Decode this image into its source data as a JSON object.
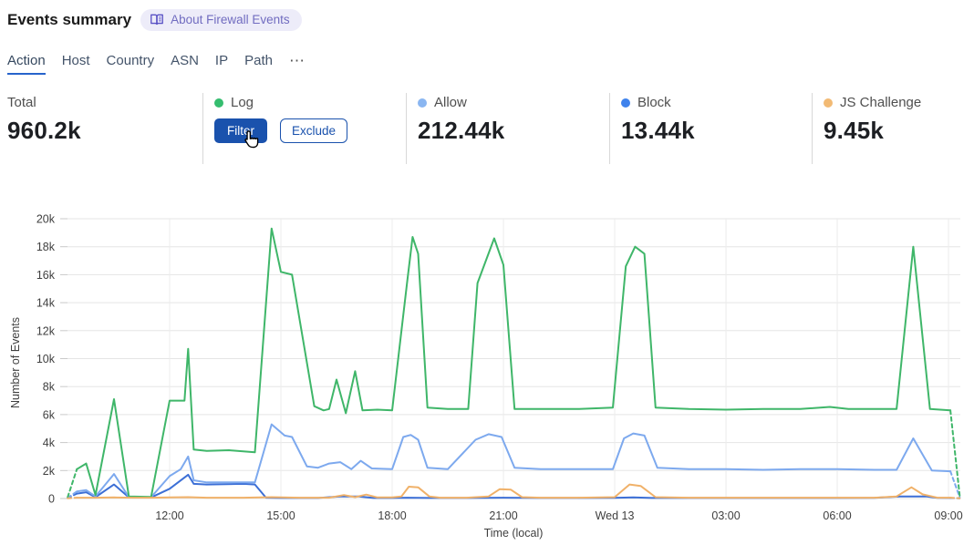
{
  "header": {
    "title": "Events summary",
    "badge": {
      "icon": "book-icon",
      "label": "About Firewall Events"
    }
  },
  "tabs": {
    "items": [
      {
        "label": "Action",
        "active": true
      },
      {
        "label": "Host",
        "active": false
      },
      {
        "label": "Country",
        "active": false
      },
      {
        "label": "ASN",
        "active": false
      },
      {
        "label": "IP",
        "active": false
      },
      {
        "label": "Path",
        "active": false
      }
    ],
    "more": "⋯"
  },
  "stats": {
    "cards": [
      {
        "label": "Total",
        "value": "960.2k"
      },
      {
        "label": "Log",
        "dot_color": "#35bd6f",
        "buttons": [
          "Filter",
          "Exclude"
        ]
      },
      {
        "label": "Allow",
        "dot_color": "#8ab6f1",
        "value": "212.44k"
      },
      {
        "label": "Block",
        "dot_color": "#3e82ec",
        "value": "13.44k"
      },
      {
        "label": "JS Challenge",
        "dot_color": "#f2ba74",
        "value": "9.45k"
      }
    ]
  },
  "chart_data": {
    "type": "line",
    "title": "",
    "xlabel": "Time (local)",
    "ylabel": "Number of Events",
    "ylim": [
      0,
      20000
    ],
    "grid": true,
    "x_unit": "hours since 09:00 (Tue)",
    "x_domain": [
      0.25,
      24.3
    ],
    "y_ticks": [
      "0",
      "2k",
      "4k",
      "6k",
      "8k",
      "10k",
      "12k",
      "14k",
      "16k",
      "18k",
      "20k"
    ],
    "x_ticks": [
      {
        "label": "12:00",
        "hour": 3
      },
      {
        "label": "15:00",
        "hour": 6
      },
      {
        "label": "18:00",
        "hour": 9
      },
      {
        "label": "21:00",
        "hour": 12
      },
      {
        "label": "Wed 13",
        "hour": 15
      },
      {
        "label": "03:00",
        "hour": 18
      },
      {
        "label": "06:00",
        "hour": 21
      },
      {
        "label": "09:00",
        "hour": 24
      }
    ],
    "series": [
      {
        "name": "Block",
        "color": "#3c6fd6",
        "head_dash": [
          [
            0.25,
            30
          ],
          [
            0.5,
            350
          ]
        ],
        "points": [
          [
            0.5,
            350
          ],
          [
            0.75,
            450
          ],
          [
            1,
            100
          ],
          [
            1.5,
            1000
          ],
          [
            1.9,
            80
          ],
          [
            2.5,
            80
          ],
          [
            3,
            700
          ],
          [
            3.5,
            1700
          ],
          [
            3.65,
            1050
          ],
          [
            4,
            1000
          ],
          [
            5,
            1050
          ],
          [
            5.3,
            1000
          ],
          [
            5.6,
            60
          ],
          [
            6,
            40
          ],
          [
            7,
            40
          ],
          [
            7.6,
            150
          ],
          [
            8.1,
            150
          ],
          [
            8.5,
            40
          ],
          [
            9,
            40
          ],
          [
            9.4,
            60
          ],
          [
            10,
            40
          ],
          [
            11,
            40
          ],
          [
            12,
            60
          ],
          [
            13,
            40
          ],
          [
            14,
            40
          ],
          [
            15,
            50
          ],
          [
            15.5,
            80
          ],
          [
            16,
            40
          ],
          [
            17,
            40
          ],
          [
            18,
            40
          ],
          [
            19,
            40
          ],
          [
            20,
            40
          ],
          [
            21,
            40
          ],
          [
            22,
            50
          ],
          [
            22.7,
            150
          ],
          [
            23.4,
            150
          ],
          [
            23.7,
            50
          ],
          [
            24.05,
            40
          ]
        ],
        "tail_dash": [
          [
            24.05,
            40
          ],
          [
            24.3,
            20
          ]
        ]
      },
      {
        "name": "Allow",
        "color": "#7da9ee",
        "head_dash": [
          [
            0.25,
            50
          ],
          [
            0.5,
            500
          ]
        ],
        "points": [
          [
            0.5,
            500
          ],
          [
            0.75,
            600
          ],
          [
            1,
            150
          ],
          [
            1.5,
            1750
          ],
          [
            1.9,
            100
          ],
          [
            2.5,
            100
          ],
          [
            3,
            1600
          ],
          [
            3.3,
            2100
          ],
          [
            3.5,
            3000
          ],
          [
            3.65,
            1300
          ],
          [
            4,
            1150
          ],
          [
            5,
            1150
          ],
          [
            5.3,
            1150
          ],
          [
            5.75,
            5300
          ],
          [
            6.1,
            4500
          ],
          [
            6.3,
            4400
          ],
          [
            6.7,
            2300
          ],
          [
            7,
            2200
          ],
          [
            7.3,
            2500
          ],
          [
            7.6,
            2600
          ],
          [
            7.9,
            2100
          ],
          [
            8.15,
            2700
          ],
          [
            8.45,
            2150
          ],
          [
            9,
            2100
          ],
          [
            9.3,
            4400
          ],
          [
            9.5,
            4550
          ],
          [
            9.7,
            4200
          ],
          [
            9.95,
            2200
          ],
          [
            10.5,
            2100
          ],
          [
            11.25,
            4200
          ],
          [
            11.6,
            4600
          ],
          [
            11.95,
            4400
          ],
          [
            12.3,
            2200
          ],
          [
            13,
            2100
          ],
          [
            14,
            2100
          ],
          [
            14.95,
            2100
          ],
          [
            15.25,
            4300
          ],
          [
            15.5,
            4650
          ],
          [
            15.8,
            4500
          ],
          [
            16.15,
            2200
          ],
          [
            17,
            2100
          ],
          [
            18,
            2100
          ],
          [
            19,
            2050
          ],
          [
            20,
            2100
          ],
          [
            21,
            2100
          ],
          [
            22,
            2050
          ],
          [
            22.6,
            2050
          ],
          [
            23.05,
            4300
          ],
          [
            23.55,
            2000
          ],
          [
            24.05,
            1950
          ]
        ],
        "tail_dash": [
          [
            24.05,
            1950
          ],
          [
            24.3,
            100
          ]
        ]
      },
      {
        "name": "Log",
        "color": "#3fb669",
        "head_dash": [
          [
            0.25,
            100
          ],
          [
            0.5,
            2100
          ]
        ],
        "points": [
          [
            0.5,
            2100
          ],
          [
            0.75,
            2500
          ],
          [
            1,
            250
          ],
          [
            1.5,
            7100
          ],
          [
            1.9,
            150
          ],
          [
            2.5,
            120
          ],
          [
            3,
            7000
          ],
          [
            3.4,
            7000
          ],
          [
            3.5,
            10700
          ],
          [
            3.65,
            3500
          ],
          [
            4,
            3400
          ],
          [
            4.6,
            3450
          ],
          [
            5.3,
            3300
          ],
          [
            5.75,
            19300
          ],
          [
            6,
            16200
          ],
          [
            6.3,
            16000
          ],
          [
            6.9,
            6600
          ],
          [
            7.15,
            6300
          ],
          [
            7.3,
            6400
          ],
          [
            7.5,
            8500
          ],
          [
            7.75,
            6100
          ],
          [
            8,
            9100
          ],
          [
            8.2,
            6300
          ],
          [
            8.6,
            6350
          ],
          [
            9,
            6300
          ],
          [
            9.4,
            15400
          ],
          [
            9.55,
            18700
          ],
          [
            9.7,
            17500
          ],
          [
            9.95,
            6500
          ],
          [
            10.5,
            6400
          ],
          [
            11.05,
            6400
          ],
          [
            11.3,
            15400
          ],
          [
            11.75,
            18600
          ],
          [
            12,
            16700
          ],
          [
            12.3,
            6400
          ],
          [
            13,
            6400
          ],
          [
            14,
            6400
          ],
          [
            14.95,
            6500
          ],
          [
            15.3,
            16600
          ],
          [
            15.55,
            18000
          ],
          [
            15.8,
            17500
          ],
          [
            16.1,
            6500
          ],
          [
            17,
            6400
          ],
          [
            18,
            6350
          ],
          [
            19,
            6400
          ],
          [
            20,
            6400
          ],
          [
            20.8,
            6550
          ],
          [
            21.3,
            6400
          ],
          [
            22.3,
            6400
          ],
          [
            22.6,
            6400
          ],
          [
            23.05,
            18000
          ],
          [
            23.5,
            6400
          ],
          [
            24.05,
            6300
          ]
        ],
        "tail_dash": [
          [
            24.05,
            6300
          ],
          [
            24.3,
            200
          ]
        ]
      },
      {
        "name": "JS Challenge",
        "color": "#f0b169",
        "head_dash": [
          [
            0.25,
            20
          ],
          [
            0.5,
            60
          ]
        ],
        "points": [
          [
            0.5,
            60
          ],
          [
            1,
            60
          ],
          [
            1.5,
            80
          ],
          [
            2,
            60
          ],
          [
            2.5,
            60
          ],
          [
            3,
            80
          ],
          [
            3.5,
            100
          ],
          [
            4,
            60
          ],
          [
            5,
            60
          ],
          [
            5.75,
            100
          ],
          [
            6.5,
            60
          ],
          [
            7.3,
            60
          ],
          [
            7.7,
            250
          ],
          [
            8,
            100
          ],
          [
            8.3,
            280
          ],
          [
            8.6,
            80
          ],
          [
            9,
            80
          ],
          [
            9.25,
            150
          ],
          [
            9.45,
            850
          ],
          [
            9.7,
            800
          ],
          [
            10,
            150
          ],
          [
            10.3,
            60
          ],
          [
            11,
            60
          ],
          [
            11.6,
            150
          ],
          [
            11.9,
            670
          ],
          [
            12.2,
            630
          ],
          [
            12.5,
            100
          ],
          [
            13,
            60
          ],
          [
            14,
            60
          ],
          [
            15,
            100
          ],
          [
            15.4,
            1000
          ],
          [
            15.7,
            900
          ],
          [
            16.1,
            100
          ],
          [
            17,
            60
          ],
          [
            18,
            60
          ],
          [
            19,
            60
          ],
          [
            20,
            60
          ],
          [
            21,
            60
          ],
          [
            22,
            60
          ],
          [
            22.6,
            150
          ],
          [
            23.0,
            800
          ],
          [
            23.3,
            300
          ],
          [
            23.7,
            60
          ],
          [
            24.05,
            60
          ]
        ],
        "tail_dash": [
          [
            24.05,
            60
          ],
          [
            24.3,
            20
          ]
        ]
      }
    ]
  }
}
